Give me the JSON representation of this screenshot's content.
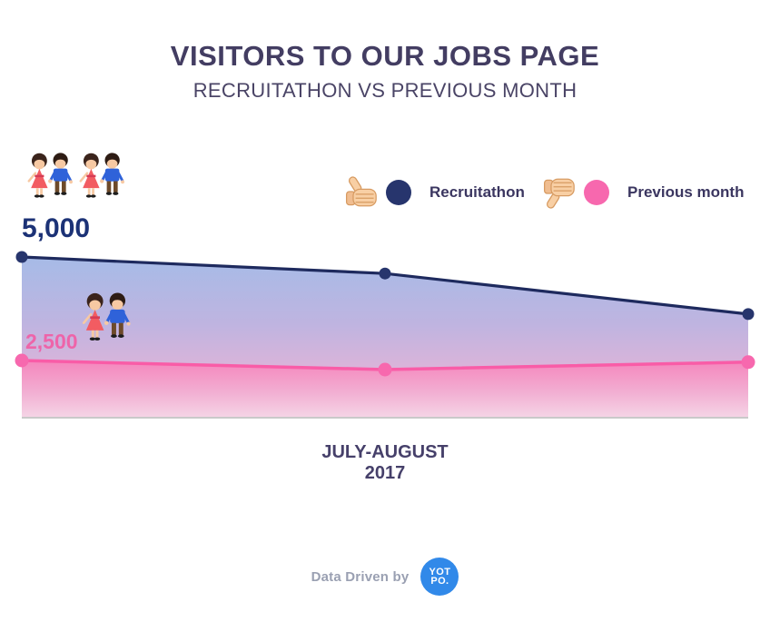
{
  "header": {
    "title": "VISITORS TO OUR JOBS PAGE",
    "subtitle": "RECRUITATHON VS PREVIOUS MONTH"
  },
  "legend": {
    "recruitathon_label": "Recruitathon",
    "previous_label": "Previous month"
  },
  "labels": {
    "recruitathon_value": "5,000",
    "previous_value": "2,500"
  },
  "axis": {
    "x_label_line1": "JULY-AUGUST",
    "x_label_line2": "2017"
  },
  "footer": {
    "text": "Data Driven by",
    "logo_line1": "YOT",
    "logo_line2": "PO."
  },
  "colors": {
    "title_text": "#433d62",
    "recruitathon_navy": "#1e2a5e",
    "recruitathon_dot": "#27356d",
    "previous_pink": "#f95ca7",
    "previous_dot": "#f768ae",
    "area_blue_top": "#a6bbe7",
    "area_pink_top": "#f585bc",
    "area_pink_bottom": "#f5d5e6",
    "baseline_gray": "#c9c9c9",
    "footer_gray": "#9aa0b2",
    "yotpo_blue": "#3189e9"
  },
  "chart_data": {
    "type": "area",
    "title": "VISITORS TO OUR JOBS PAGE",
    "subtitle": "RECRUITATHON VS PREVIOUS MONTH",
    "x_axis_label": "JULY-AUGUST 2017",
    "grid": false,
    "legend_position": "top-right",
    "baseline": true,
    "series": [
      {
        "name": "Recruitathon",
        "color": "#1e2a5e",
        "dot_color": "#27356d",
        "values": [
          5000,
          4600,
          3620
        ]
      },
      {
        "name": "Previous month",
        "color": "#f95ca7",
        "dot_color": "#f768ae",
        "values": [
          2500,
          2280,
          2460
        ]
      }
    ],
    "y_reference_labels": [
      {
        "series": "Recruitathon",
        "label": "5,000",
        "value": 5000
      },
      {
        "series": "Previous month",
        "label": "2,500",
        "value": 2500
      }
    ]
  }
}
